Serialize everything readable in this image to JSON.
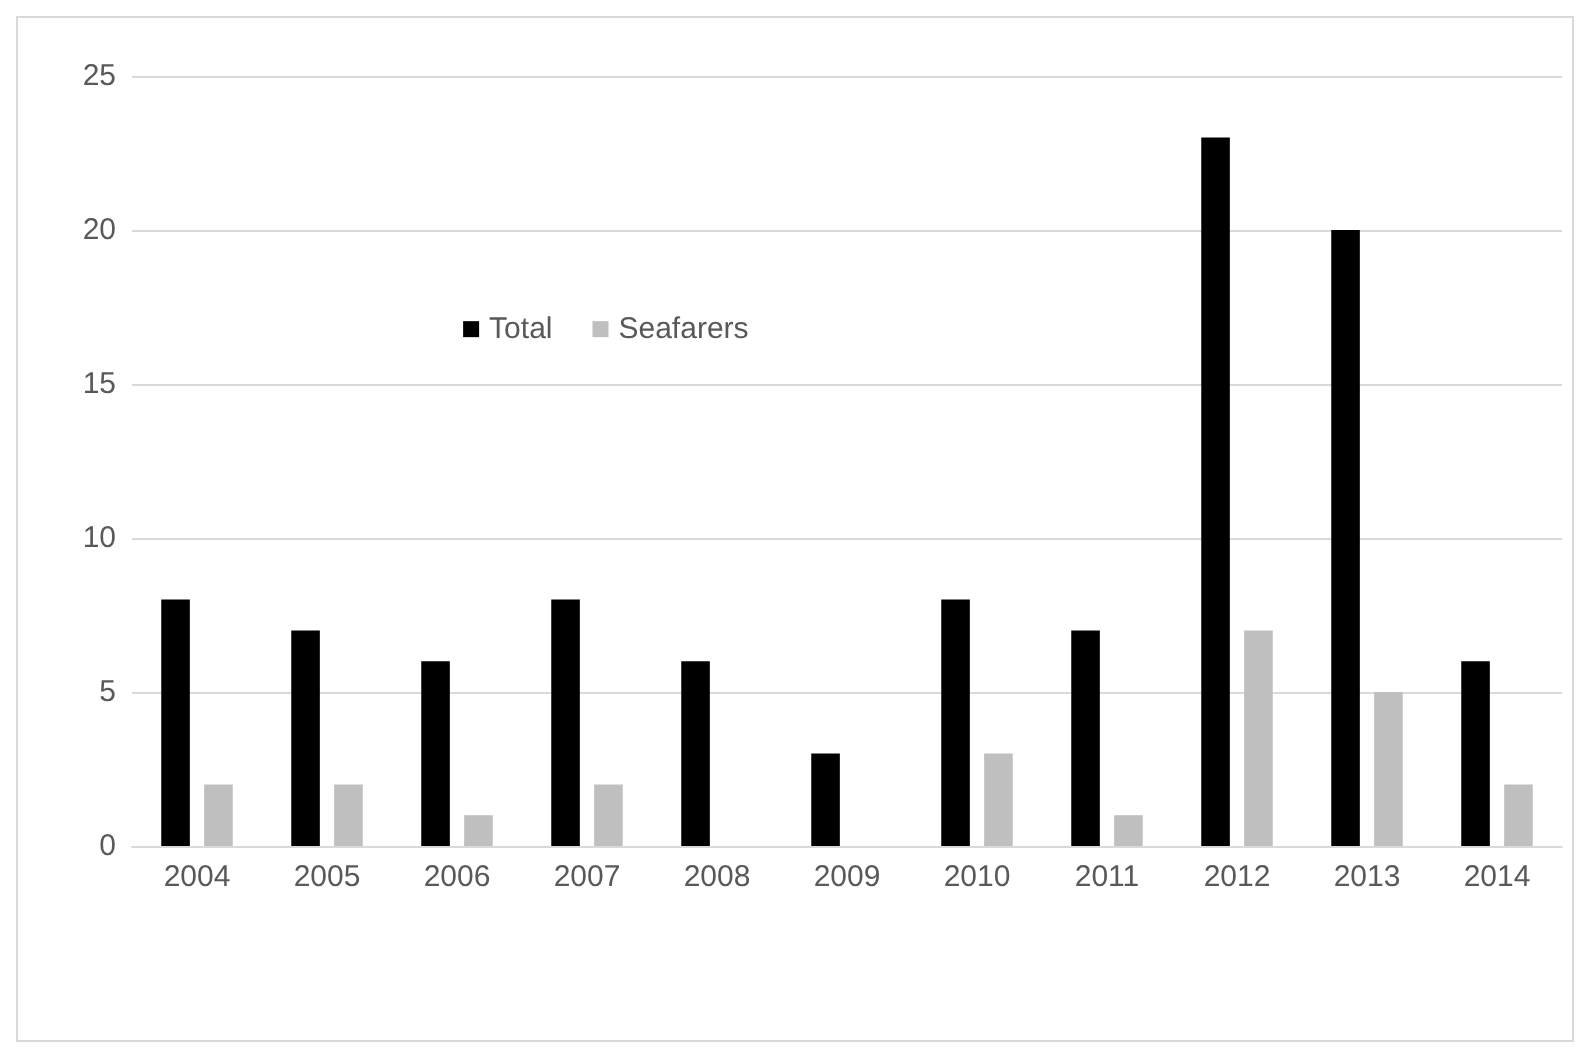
{
  "chart_data": {
    "type": "bar",
    "categories": [
      "2004",
      "2005",
      "2006",
      "2007",
      "2008",
      "2009",
      "2010",
      "2011",
      "2012",
      "2013",
      "2014"
    ],
    "series": [
      {
        "name": "Total",
        "color": "#000000",
        "values": [
          8,
          7,
          6,
          8,
          6,
          3,
          8,
          7,
          23,
          20,
          6
        ]
      },
      {
        "name": "Seafarers",
        "color": "#bfbfbf",
        "values": [
          2,
          2,
          1,
          2,
          0,
          0,
          3,
          1,
          7,
          5,
          2
        ]
      }
    ],
    "ylim": [
      0,
      25
    ],
    "yticks": [
      0,
      5,
      10,
      15,
      20,
      25
    ],
    "grid": "y",
    "legend": "top left"
  }
}
